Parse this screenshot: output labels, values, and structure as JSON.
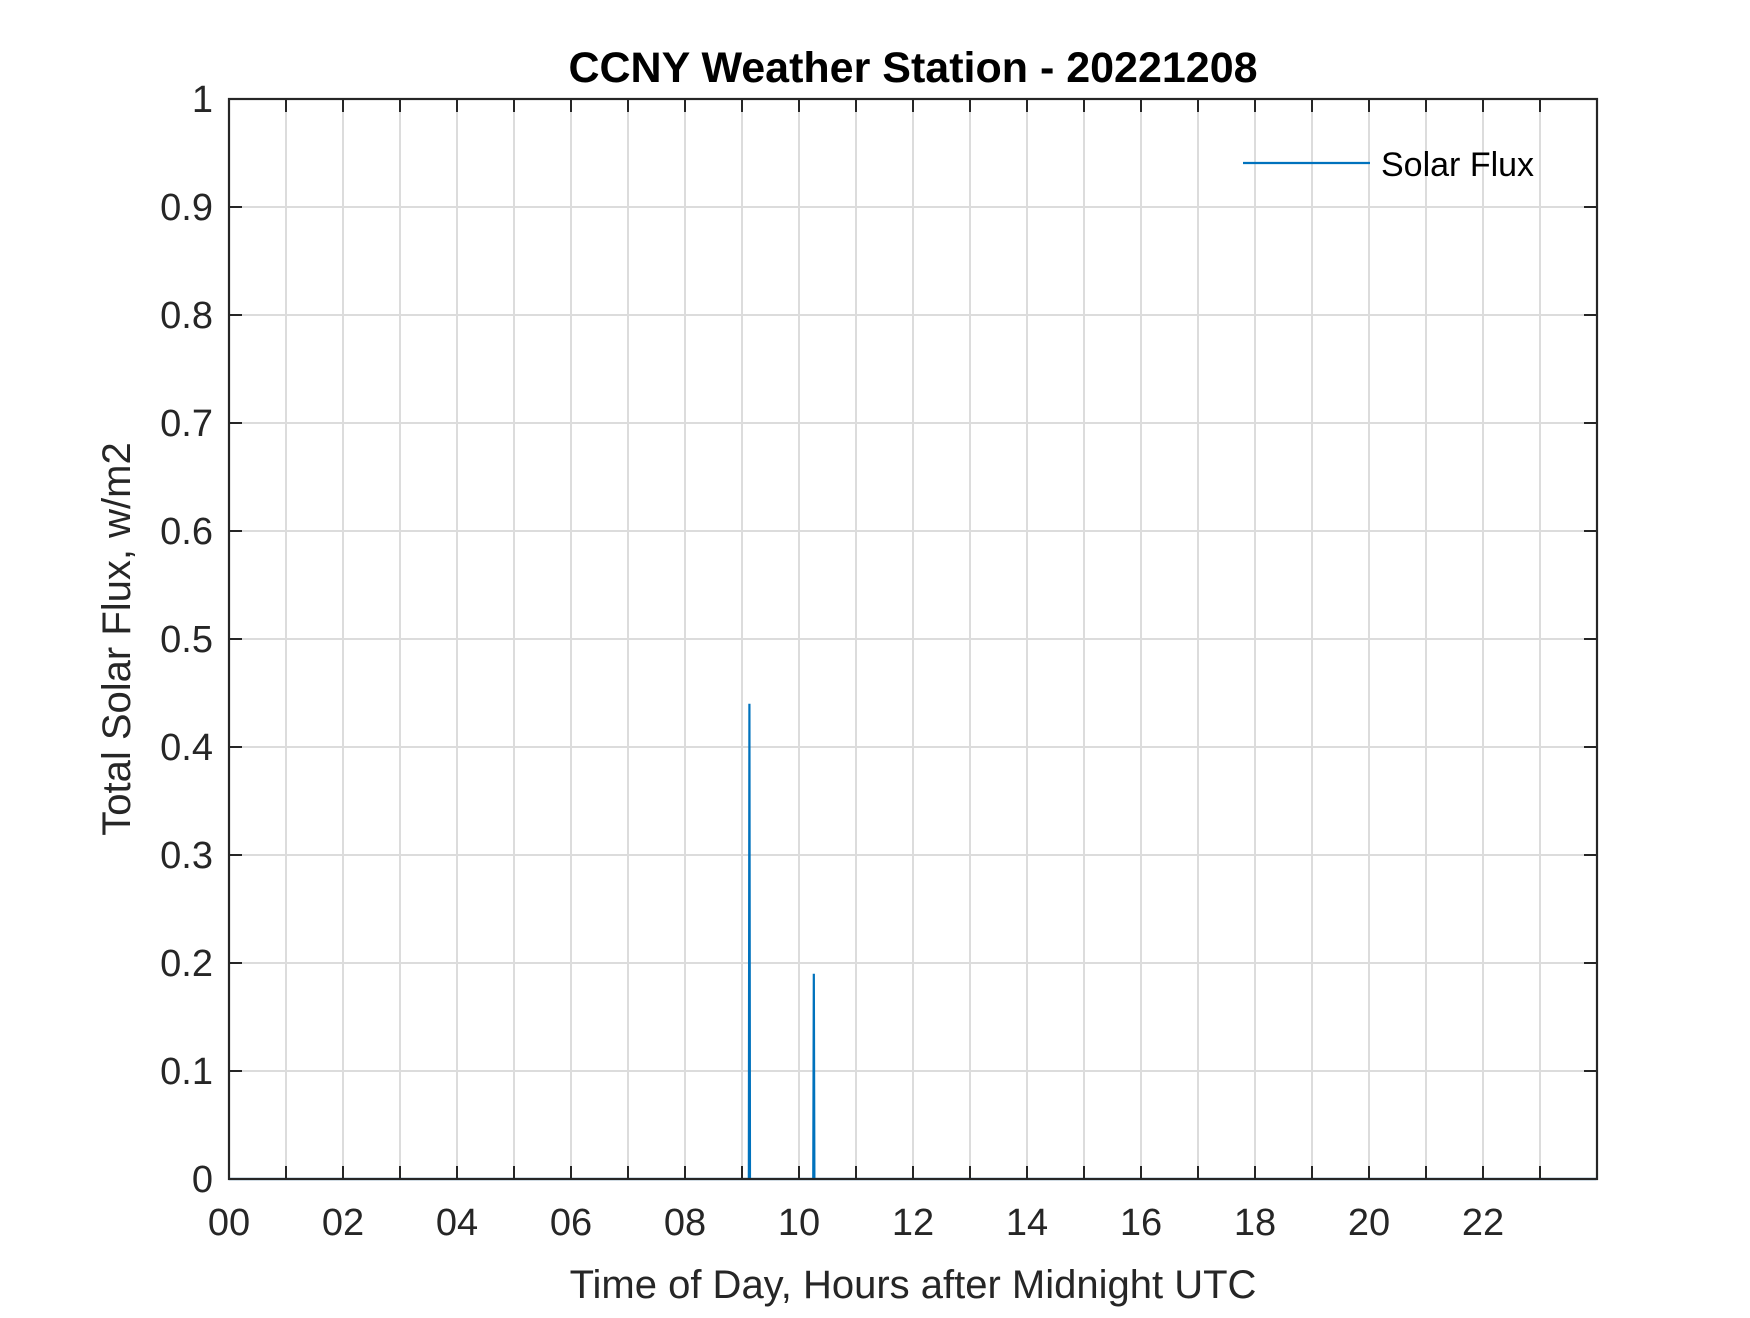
{
  "chart_data": {
    "type": "line",
    "title": "CCNY Weather Station - 20221208",
    "xlabel": "Time of Day, Hours after Midnight UTC",
    "ylabel": "Total Solar Flux, w/m2",
    "xlim": [
      0,
      24
    ],
    "ylim": [
      0,
      1
    ],
    "x_ticks": [
      0,
      2,
      4,
      6,
      8,
      10,
      12,
      14,
      16,
      18,
      20,
      22
    ],
    "x_tick_labels": [
      "00",
      "02",
      "04",
      "06",
      "08",
      "10",
      "12",
      "14",
      "16",
      "18",
      "20",
      "22"
    ],
    "y_ticks": [
      0,
      0.1,
      0.2,
      0.3,
      0.4,
      0.5,
      0.6,
      0.7,
      0.8,
      0.9,
      1
    ],
    "y_tick_labels": [
      "0",
      "0.1",
      "0.2",
      "0.3",
      "0.4",
      "0.5",
      "0.6",
      "0.7",
      "0.8",
      "0.9",
      "1"
    ],
    "grid": true,
    "legend_position": "top-right",
    "series": [
      {
        "name": "Solar Flux",
        "color": "#0072BD",
        "points": [
          [
            0,
            0
          ],
          [
            9.12,
            0
          ],
          [
            9.13,
            0.44
          ],
          [
            9.14,
            0
          ],
          [
            10.25,
            0
          ],
          [
            10.26,
            0.19
          ],
          [
            10.27,
            0
          ],
          [
            23.99,
            0
          ]
        ]
      }
    ]
  }
}
